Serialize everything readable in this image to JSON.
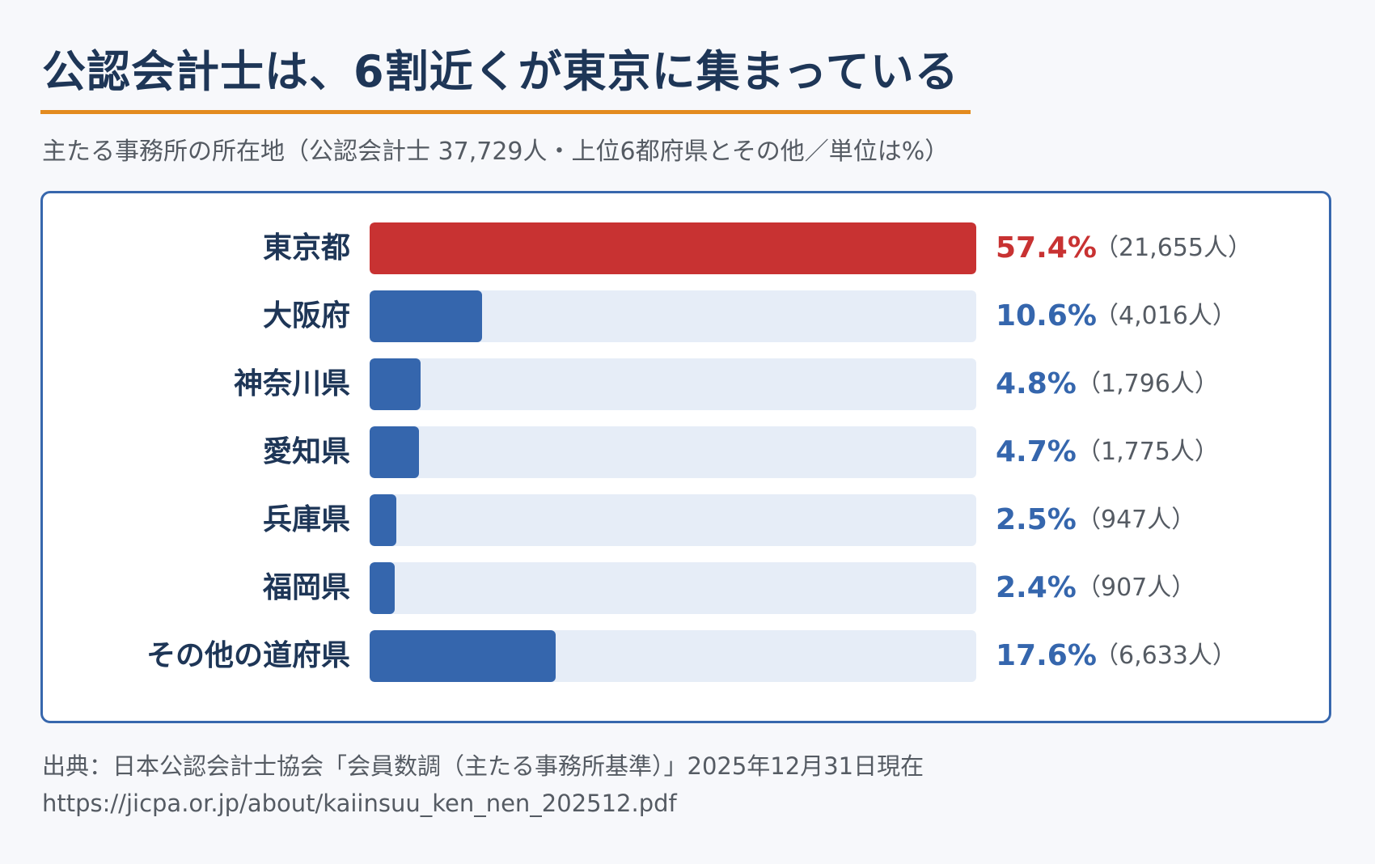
{
  "title": "公認会計士は、6割近くが東京に集まっている",
  "subtitle": "主たる事務所の所在地（公認会計士 37,729人・上位6都府県とその他／単位は%）",
  "colors": {
    "highlight": "#c83232",
    "bar": "#3566ad",
    "track": "#e6edf7",
    "accent_rule": "#e38b1f",
    "frame": "#3767ad"
  },
  "chart_data": {
    "type": "bar",
    "orientation": "horizontal",
    "categories": [
      "東京都",
      "大阪府",
      "神奈川県",
      "愛知県",
      "兵庫県",
      "福岡県",
      "その他の道府県"
    ],
    "values": [
      57.4,
      10.6,
      4.8,
      4.7,
      2.5,
      2.4,
      17.6
    ],
    "value_labels": [
      "57.4%",
      "10.6%",
      "4.8%",
      "4.7%",
      "2.5%",
      "2.4%",
      "17.6%"
    ],
    "counts": [
      "（21,655人）",
      "（4,016人）",
      "（1,796人）",
      "（1,775人）",
      "（947人）",
      "（907人）",
      "（6,633人）"
    ],
    "highlight_index": 0,
    "xlim": [
      0,
      57.4
    ],
    "grid": false
  },
  "source": {
    "line1": "出典：日本公認会計士協会「会員数調（主たる事務所基準）」2025年12月31日現在",
    "line2": "https://jicpa.or.jp/about/kaiinsuu_ken_nen_202512.pdf"
  }
}
